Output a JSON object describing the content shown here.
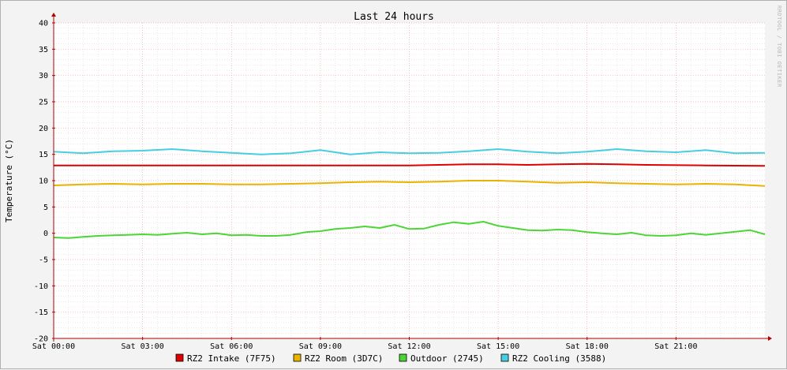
{
  "chart_data": {
    "type": "line",
    "title": "Last 24 hours",
    "ylabel": "Temperature (°C)",
    "xlabel": "",
    "watermark": "RRDTOOL / TOBI OETIKER",
    "ylim": [
      -20,
      40
    ],
    "y_ticks": [
      -20,
      -15,
      -10,
      -5,
      0,
      5,
      10,
      15,
      20,
      25,
      30,
      35,
      40
    ],
    "x_range_hours": [
      0,
      24
    ],
    "x_ticks": [
      {
        "hour": 0,
        "label": "Sat 00:00"
      },
      {
        "hour": 3,
        "label": "Sat 03:00"
      },
      {
        "hour": 6,
        "label": "Sat 06:00"
      },
      {
        "hour": 9,
        "label": "Sat 09:00"
      },
      {
        "hour": 12,
        "label": "Sat 12:00"
      },
      {
        "hour": 15,
        "label": "Sat 15:00"
      },
      {
        "hour": 18,
        "label": "Sat 18:00"
      },
      {
        "hour": 21,
        "label": "Sat 21:00"
      }
    ],
    "grid": true,
    "legend_position": "bottom",
    "series": [
      {
        "name": "RZ2 Intake (7F75)",
        "color": "#e00000",
        "x": [
          0,
          2,
          4,
          6,
          8,
          10,
          12,
          13,
          14,
          15,
          16,
          17,
          18,
          19,
          20,
          22,
          24
        ],
        "y": [
          12.9,
          12.9,
          12.9,
          12.9,
          12.9,
          12.9,
          12.9,
          13.0,
          13.1,
          13.1,
          13.0,
          13.1,
          13.2,
          13.1,
          13.0,
          12.9,
          12.8
        ]
      },
      {
        "name": "RZ2 Room (3D7C)",
        "color": "#e8b400",
        "x": [
          0,
          1,
          2,
          3,
          4,
          5,
          6,
          7,
          8,
          9,
          10,
          11,
          12,
          13,
          14,
          15,
          16,
          17,
          18,
          19,
          20,
          21,
          22,
          23,
          24
        ],
        "y": [
          9.1,
          9.3,
          9.4,
          9.3,
          9.4,
          9.4,
          9.3,
          9.3,
          9.4,
          9.5,
          9.7,
          9.8,
          9.7,
          9.8,
          10.0,
          10.0,
          9.8,
          9.6,
          9.7,
          9.5,
          9.4,
          9.3,
          9.4,
          9.3,
          9.0
        ]
      },
      {
        "name": "Outdoor (2745)",
        "color": "#4cd636",
        "x": [
          0,
          0.5,
          1,
          1.5,
          2,
          2.5,
          3,
          3.5,
          4,
          4.5,
          5,
          5.5,
          6,
          6.5,
          7,
          7.5,
          8,
          8.5,
          9,
          9.5,
          10,
          10.5,
          11,
          11.5,
          12,
          12.5,
          13,
          13.5,
          14,
          14.5,
          15,
          15.5,
          16,
          16.5,
          17,
          17.5,
          18,
          18.5,
          19,
          19.5,
          20,
          20.5,
          21,
          21.5,
          22,
          22.5,
          23,
          23.5,
          24
        ],
        "y": [
          -0.8,
          -0.9,
          -0.7,
          -0.5,
          -0.4,
          -0.3,
          -0.2,
          -0.3,
          -0.1,
          0.1,
          -0.2,
          0.0,
          -0.4,
          -0.3,
          -0.5,
          -0.5,
          -0.3,
          0.2,
          0.4,
          0.8,
          1.0,
          1.3,
          1.0,
          1.6,
          0.8,
          0.9,
          1.6,
          2.1,
          1.8,
          2.2,
          1.4,
          1.0,
          0.6,
          0.5,
          0.7,
          0.6,
          0.2,
          0.0,
          -0.2,
          0.1,
          -0.4,
          -0.5,
          -0.4,
          0.0,
          -0.3,
          0.0,
          0.3,
          0.6,
          -0.2
        ]
      },
      {
        "name": "RZ2 Cooling (3588)",
        "color": "#45cfe0",
        "x": [
          0,
          1,
          2,
          3,
          4,
          5,
          6,
          7,
          8,
          9,
          10,
          11,
          12,
          13,
          14,
          15,
          16,
          17,
          18,
          19,
          20,
          21,
          22,
          23,
          24
        ],
        "y": [
          15.5,
          15.2,
          15.6,
          15.7,
          16.0,
          15.6,
          15.3,
          15.0,
          15.2,
          15.8,
          15.0,
          15.4,
          15.2,
          15.3,
          15.6,
          16.0,
          15.5,
          15.2,
          15.5,
          16.0,
          15.6,
          15.4,
          15.8,
          15.2,
          15.3
        ]
      }
    ]
  }
}
